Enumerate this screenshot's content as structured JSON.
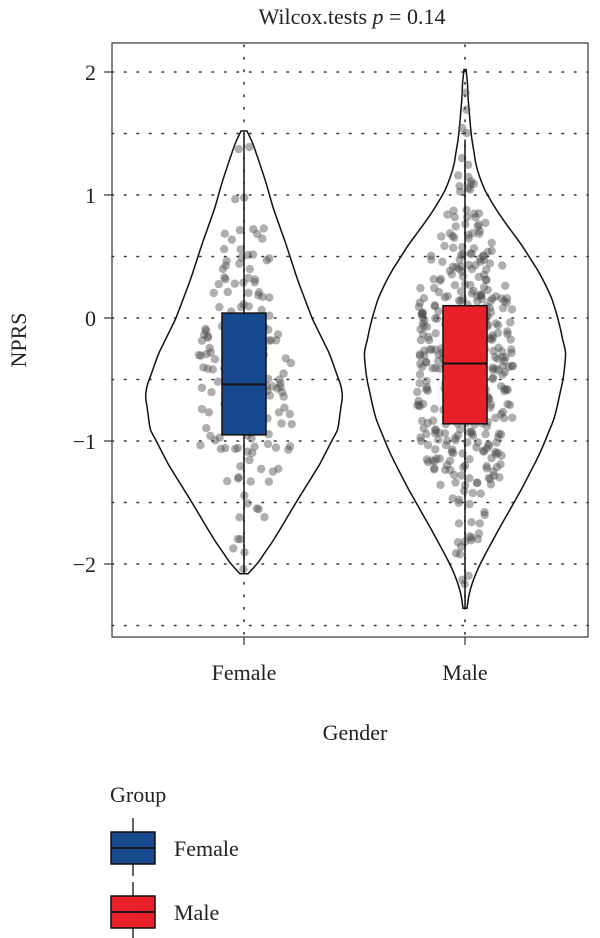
{
  "chart_data": {
    "type": "violin",
    "title_prefix": "Wilcox.tests ",
    "title_p": "p",
    "title_suffix": " = 0.14",
    "xlabel": "Gender",
    "ylabel": "NPRS",
    "ylim": [
      -2.55,
      2.1
    ],
    "yticks": [
      2,
      1,
      0,
      -1,
      -2
    ],
    "ytick_labels": [
      "2",
      "1",
      "0",
      "−1",
      "−2"
    ],
    "grid": "dotted",
    "legend": {
      "title": "Group",
      "placement": "bottom-left",
      "entries": [
        "Female",
        "Male"
      ]
    },
    "groups": [
      {
        "name": "Female",
        "color": "#174a8c",
        "box": {
          "q1": -0.95,
          "median": -0.54,
          "q3": 0.04,
          "whisker_low": -2.08,
          "whisker_high": 1.5
        },
        "violin_range": [
          -2.08,
          1.52
        ],
        "n_points": 180
      },
      {
        "name": "Male",
        "color": "#e8202a",
        "box": {
          "q1": -0.86,
          "median": -0.37,
          "q3": 0.1,
          "whisker_low": -2.36,
          "whisker_high": 1.45
        },
        "violin_range": [
          -2.36,
          2.02
        ],
        "n_points": 420
      }
    ]
  }
}
